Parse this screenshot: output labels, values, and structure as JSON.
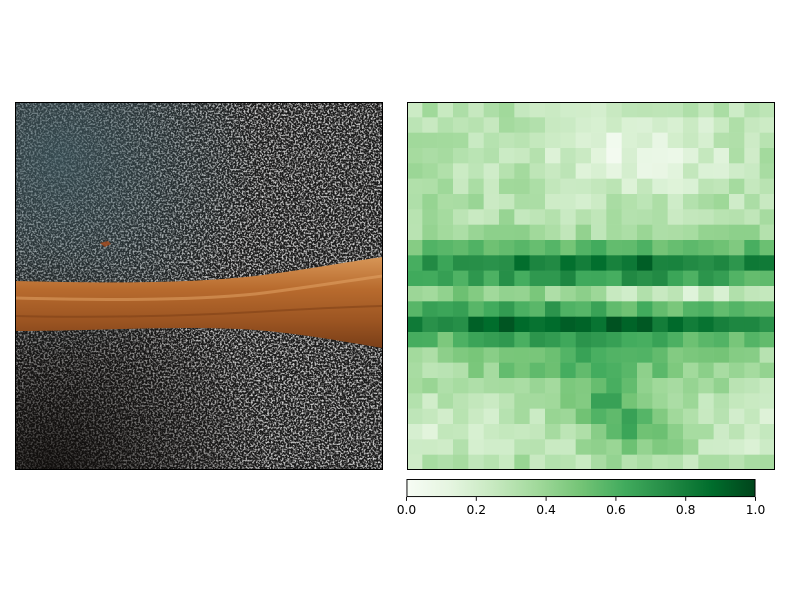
{
  "figure": {
    "left_panel": {
      "content": "photo: wooden spoon handle on dark speckled granite",
      "icon": "photo-image"
    },
    "right_panel": {
      "content": "attention heatmap"
    }
  },
  "chart_data": {
    "type": "heatmap",
    "colormap": "Greens",
    "colormap_stops": [
      "#f7fcf5",
      "#e5f5e0",
      "#c7e9c0",
      "#a1d99b",
      "#74c476",
      "#41ab5d",
      "#238b45",
      "#006d2c",
      "#00441b"
    ],
    "grid_rows": 24,
    "grid_cols": 24,
    "vmin": 0.0,
    "vmax": 1.0,
    "colorbar": {
      "orientation": "horizontal",
      "ticks": [
        "0.0",
        "0.2",
        "0.4",
        "0.6",
        "0.8",
        "1.0"
      ],
      "tick_values": [
        0.0,
        0.2,
        0.4,
        0.6,
        0.8,
        1.0
      ]
    },
    "title": "",
    "xlabel": "",
    "ylabel": "",
    "grid": false
  }
}
